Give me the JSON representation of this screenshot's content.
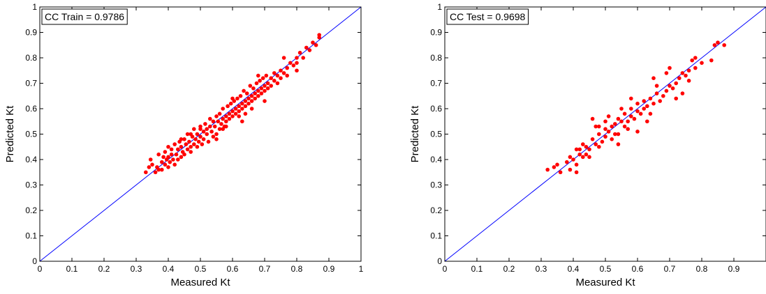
{
  "chart_data": [
    {
      "type": "scatter",
      "xlabel": "Measured Kt",
      "ylabel": "Predicted Kt",
      "xlim": [
        0,
        1
      ],
      "ylim": [
        0,
        1
      ],
      "xticks": [
        "0",
        "0.1",
        "0.2",
        "0.3",
        "0.4",
        "0.5",
        "0.6",
        "0.7",
        "0.8",
        "0.9",
        "1"
      ],
      "yticks": [
        "0",
        "0.1",
        "0.2",
        "0.3",
        "0.4",
        "0.5",
        "0.6",
        "0.7",
        "0.8",
        "0.9",
        "1"
      ],
      "annotation": "CC Train = 0.9786",
      "grid": false,
      "reference_line": {
        "x": [
          0,
          1
        ],
        "y": [
          0,
          1
        ],
        "color": "#0000ff"
      },
      "marker_color": "#ff0000",
      "points": [
        [
          0.33,
          0.35
        ],
        [
          0.34,
          0.37
        ],
        [
          0.345,
          0.4
        ],
        [
          0.35,
          0.38
        ],
        [
          0.36,
          0.35
        ],
        [
          0.365,
          0.37
        ],
        [
          0.37,
          0.36
        ],
        [
          0.37,
          0.42
        ],
        [
          0.38,
          0.36
        ],
        [
          0.38,
          0.39
        ],
        [
          0.385,
          0.41
        ],
        [
          0.39,
          0.38
        ],
        [
          0.39,
          0.43
        ],
        [
          0.395,
          0.4
        ],
        [
          0.4,
          0.37
        ],
        [
          0.4,
          0.41
        ],
        [
          0.4,
          0.45
        ],
        [
          0.405,
          0.39
        ],
        [
          0.41,
          0.42
        ],
        [
          0.41,
          0.44
        ],
        [
          0.415,
          0.4
        ],
        [
          0.42,
          0.38
        ],
        [
          0.42,
          0.46
        ],
        [
          0.425,
          0.42
        ],
        [
          0.43,
          0.4
        ],
        [
          0.43,
          0.44
        ],
        [
          0.435,
          0.47
        ],
        [
          0.44,
          0.41
        ],
        [
          0.44,
          0.45
        ],
        [
          0.445,
          0.43
        ],
        [
          0.45,
          0.48
        ],
        [
          0.45,
          0.42
        ],
        [
          0.455,
          0.46
        ],
        [
          0.46,
          0.44
        ],
        [
          0.46,
          0.5
        ],
        [
          0.465,
          0.47
        ],
        [
          0.47,
          0.43
        ],
        [
          0.47,
          0.45
        ],
        [
          0.475,
          0.49
        ],
        [
          0.48,
          0.46
        ],
        [
          0.48,
          0.52
        ],
        [
          0.485,
          0.48
        ],
        [
          0.49,
          0.45
        ],
        [
          0.49,
          0.5
        ],
        [
          0.495,
          0.47
        ],
        [
          0.5,
          0.49
        ],
        [
          0.5,
          0.53
        ],
        [
          0.505,
          0.46
        ],
        [
          0.51,
          0.51
        ],
        [
          0.51,
          0.48
        ],
        [
          0.515,
          0.54
        ],
        [
          0.52,
          0.5
        ],
        [
          0.52,
          0.52
        ],
        [
          0.525,
          0.47
        ],
        [
          0.53,
          0.53
        ],
        [
          0.53,
          0.56
        ],
        [
          0.535,
          0.51
        ],
        [
          0.54,
          0.49
        ],
        [
          0.54,
          0.55
        ],
        [
          0.545,
          0.53
        ],
        [
          0.55,
          0.57
        ],
        [
          0.55,
          0.5
        ],
        [
          0.555,
          0.55
        ],
        [
          0.56,
          0.52
        ],
        [
          0.56,
          0.58
        ],
        [
          0.565,
          0.54
        ],
        [
          0.57,
          0.56
        ],
        [
          0.57,
          0.6
        ],
        [
          0.575,
          0.53
        ],
        [
          0.58,
          0.57
        ],
        [
          0.58,
          0.55
        ],
        [
          0.585,
          0.61
        ],
        [
          0.59,
          0.58
        ],
        [
          0.59,
          0.56
        ],
        [
          0.595,
          0.62
        ],
        [
          0.6,
          0.59
        ],
        [
          0.6,
          0.57
        ],
        [
          0.605,
          0.63
        ],
        [
          0.61,
          0.6
        ],
        [
          0.61,
          0.58
        ],
        [
          0.615,
          0.64
        ],
        [
          0.62,
          0.61
        ],
        [
          0.62,
          0.59
        ],
        [
          0.625,
          0.65
        ],
        [
          0.63,
          0.62
        ],
        [
          0.63,
          0.6
        ],
        [
          0.635,
          0.67
        ],
        [
          0.64,
          0.63
        ],
        [
          0.64,
          0.61
        ],
        [
          0.645,
          0.66
        ],
        [
          0.65,
          0.64
        ],
        [
          0.65,
          0.62
        ],
        [
          0.655,
          0.69
        ],
        [
          0.66,
          0.65
        ],
        [
          0.66,
          0.63
        ],
        [
          0.665,
          0.68
        ],
        [
          0.67,
          0.66
        ],
        [
          0.67,
          0.64
        ],
        [
          0.675,
          0.7
        ],
        [
          0.68,
          0.67
        ],
        [
          0.68,
          0.65
        ],
        [
          0.685,
          0.71
        ],
        [
          0.69,
          0.68
        ],
        [
          0.69,
          0.66
        ],
        [
          0.695,
          0.72
        ],
        [
          0.7,
          0.69
        ],
        [
          0.7,
          0.67
        ],
        [
          0.705,
          0.73
        ],
        [
          0.71,
          0.7
        ],
        [
          0.71,
          0.68
        ],
        [
          0.72,
          0.72
        ],
        [
          0.72,
          0.69
        ],
        [
          0.73,
          0.74
        ],
        [
          0.73,
          0.71
        ],
        [
          0.74,
          0.73
        ],
        [
          0.74,
          0.7
        ],
        [
          0.75,
          0.75
        ],
        [
          0.75,
          0.72
        ],
        [
          0.76,
          0.74
        ],
        [
          0.77,
          0.76
        ],
        [
          0.77,
          0.73
        ],
        [
          0.78,
          0.78
        ],
        [
          0.79,
          0.77
        ],
        [
          0.8,
          0.8
        ],
        [
          0.8,
          0.78
        ],
        [
          0.81,
          0.82
        ],
        [
          0.82,
          0.8
        ],
        [
          0.83,
          0.84
        ],
        [
          0.84,
          0.83
        ],
        [
          0.85,
          0.86
        ],
        [
          0.86,
          0.85
        ],
        [
          0.87,
          0.88
        ],
        [
          0.87,
          0.89
        ],
        [
          0.62,
          0.57
        ],
        [
          0.66,
          0.6
        ],
        [
          0.58,
          0.53
        ],
        [
          0.55,
          0.48
        ],
        [
          0.64,
          0.58
        ],
        [
          0.7,
          0.63
        ],
        [
          0.5,
          0.52
        ],
        [
          0.47,
          0.5
        ],
        [
          0.44,
          0.48
        ],
        [
          0.6,
          0.64
        ],
        [
          0.68,
          0.73
        ],
        [
          0.76,
          0.8
        ],
        [
          0.63,
          0.55
        ],
        [
          0.57,
          0.52
        ],
        [
          0.8,
          0.75
        ]
      ]
    },
    {
      "type": "scatter",
      "xlabel": "Measured Kt",
      "ylabel": "Predicted Kt",
      "xlim": [
        0,
        1
      ],
      "ylim": [
        0,
        1
      ],
      "xticks": [
        "0",
        "0.1",
        "0.2",
        "0.3",
        "0.4",
        "0.5",
        "0.6",
        "0.7",
        "0.8",
        "0.9"
      ],
      "yticks": [
        "0",
        "0.1",
        "0.2",
        "0.3",
        "0.4",
        "0.5",
        "0.6",
        "0.7",
        "0.8",
        "0.9",
        "1"
      ],
      "annotation": "CC Test = 0.9698",
      "grid": false,
      "reference_line": {
        "x": [
          0,
          1
        ],
        "y": [
          0,
          1
        ],
        "color": "#0000ff"
      },
      "marker_color": "#ff0000",
      "points": [
        [
          0.32,
          0.36
        ],
        [
          0.34,
          0.37
        ],
        [
          0.35,
          0.38
        ],
        [
          0.36,
          0.35
        ],
        [
          0.38,
          0.39
        ],
        [
          0.39,
          0.41
        ],
        [
          0.4,
          0.4
        ],
        [
          0.41,
          0.35
        ],
        [
          0.41,
          0.38
        ],
        [
          0.42,
          0.42
        ],
        [
          0.42,
          0.44
        ],
        [
          0.43,
          0.46
        ],
        [
          0.44,
          0.45
        ],
        [
          0.44,
          0.42
        ],
        [
          0.45,
          0.44
        ],
        [
          0.46,
          0.48
        ],
        [
          0.47,
          0.46
        ],
        [
          0.47,
          0.53
        ],
        [
          0.48,
          0.5
        ],
        [
          0.48,
          0.45
        ],
        [
          0.49,
          0.47
        ],
        [
          0.5,
          0.49
        ],
        [
          0.5,
          0.52
        ],
        [
          0.51,
          0.51
        ],
        [
          0.52,
          0.53
        ],
        [
          0.52,
          0.48
        ],
        [
          0.53,
          0.54
        ],
        [
          0.54,
          0.5
        ],
        [
          0.54,
          0.56
        ],
        [
          0.55,
          0.55
        ],
        [
          0.56,
          0.53
        ],
        [
          0.56,
          0.58
        ],
        [
          0.57,
          0.55
        ],
        [
          0.58,
          0.57
        ],
        [
          0.58,
          0.6
        ],
        [
          0.59,
          0.56
        ],
        [
          0.6,
          0.59
        ],
        [
          0.6,
          0.62
        ],
        [
          0.61,
          0.58
        ],
        [
          0.62,
          0.6
        ],
        [
          0.62,
          0.63
        ],
        [
          0.63,
          0.61
        ],
        [
          0.64,
          0.64
        ],
        [
          0.64,
          0.58
        ],
        [
          0.65,
          0.62
        ],
        [
          0.66,
          0.66
        ],
        [
          0.67,
          0.63
        ],
        [
          0.68,
          0.65
        ],
        [
          0.69,
          0.67
        ],
        [
          0.7,
          0.69
        ],
        [
          0.71,
          0.68
        ],
        [
          0.72,
          0.7
        ],
        [
          0.73,
          0.72
        ],
        [
          0.74,
          0.74
        ],
        [
          0.75,
          0.73
        ],
        [
          0.76,
          0.75
        ],
        [
          0.77,
          0.79
        ],
        [
          0.78,
          0.76
        ],
        [
          0.78,
          0.8
        ],
        [
          0.8,
          0.78
        ],
        [
          0.83,
          0.79
        ],
        [
          0.84,
          0.85
        ],
        [
          0.85,
          0.86
        ],
        [
          0.87,
          0.85
        ],
        [
          0.46,
          0.56
        ],
        [
          0.5,
          0.55
        ],
        [
          0.54,
          0.46
        ],
        [
          0.6,
          0.51
        ],
        [
          0.7,
          0.76
        ],
        [
          0.74,
          0.66
        ],
        [
          0.65,
          0.72
        ],
        [
          0.45,
          0.41
        ],
        [
          0.39,
          0.36
        ],
        [
          0.43,
          0.41
        ],
        [
          0.55,
          0.6
        ],
        [
          0.63,
          0.55
        ],
        [
          0.72,
          0.64
        ],
        [
          0.76,
          0.71
        ],
        [
          0.41,
          0.44
        ],
        [
          0.48,
          0.53
        ],
        [
          0.53,
          0.5
        ],
        [
          0.58,
          0.64
        ],
        [
          0.66,
          0.69
        ],
        [
          0.69,
          0.74
        ],
        [
          0.57,
          0.52
        ],
        [
          0.51,
          0.57
        ]
      ]
    }
  ]
}
